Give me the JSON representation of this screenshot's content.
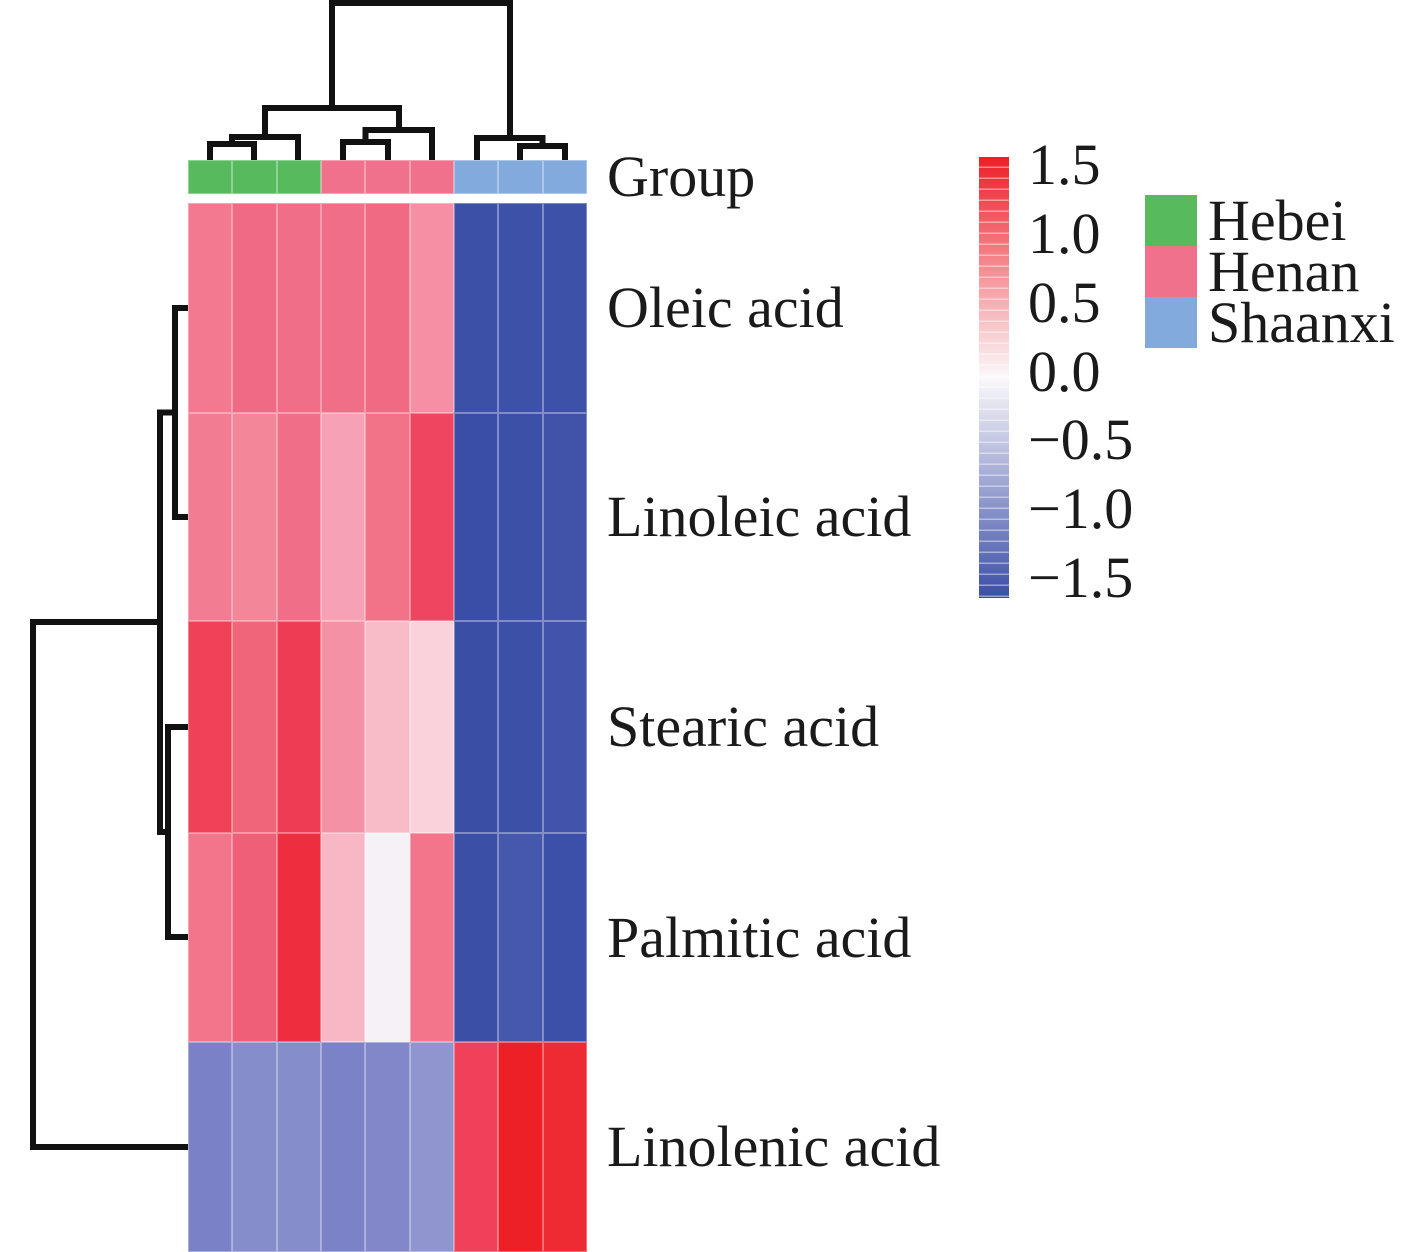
{
  "chart_data": {
    "type": "heatmap",
    "title": "",
    "rows": [
      "Oleic acid",
      "Linoleic acid",
      "Stearic acid",
      "Palmitic acid",
      "Linolenic acid"
    ],
    "columns_groups": [
      "Hebei",
      "Hebei",
      "Hebei",
      "Henan",
      "Henan",
      "Henan",
      "Shaanxi",
      "Shaanxi",
      "Shaanxi"
    ],
    "values_zscore_estimated": [
      [
        0.75,
        0.82,
        0.8,
        0.8,
        0.82,
        0.58,
        -1.42,
        -1.38,
        -1.38
      ],
      [
        0.72,
        0.65,
        0.8,
        0.48,
        0.75,
        1.1,
        -1.42,
        -1.4,
        -1.35
      ],
      [
        1.15,
        0.85,
        1.2,
        0.58,
        0.35,
        0.25,
        -1.42,
        -1.38,
        -1.32
      ],
      [
        0.75,
        0.92,
        1.35,
        0.4,
        0.03,
        0.75,
        -1.4,
        -1.22,
        -1.38
      ],
      [
        -0.85,
        -0.72,
        -0.72,
        -0.82,
        -0.78,
        -0.62,
        1.12,
        1.5,
        1.45
      ]
    ],
    "cell_colors": [
      [
        "#F27990",
        "#F16A85",
        "#F16E88",
        "#F16E88",
        "#F16A83",
        "#F58FA3",
        "#3C50A8",
        "#3E51A9",
        "#3E51A9"
      ],
      [
        "#F27C92",
        "#F38799",
        "#F16E88",
        "#F6A2B4",
        "#F27288",
        "#EF4560",
        "#3A4EA7",
        "#3C50A8",
        "#4152A9"
      ],
      [
        "#EF4158",
        "#F16579",
        "#EF3C55",
        "#F591A4",
        "#F8BCC9",
        "#FAD2DB",
        "#3A4EA6",
        "#3D50A8",
        "#4153AA"
      ],
      [
        "#F2758B",
        "#F05F78",
        "#EE2E3F",
        "#F8B7C5",
        "#F5F1F7",
        "#F2758B",
        "#3C4FA7",
        "#4657AE",
        "#3D50A9"
      ],
      [
        "#7A81C6",
        "#868DCB",
        "#868DCB",
        "#7B82C7",
        "#8187C9",
        "#9094CF",
        "#EF4159",
        "#ED2025",
        "#EE2A33"
      ]
    ],
    "colorscale": {
      "domain": [
        -1.5,
        0,
        1.5
      ],
      "colors": [
        "#3A4DA6",
        "#FBF9FB",
        "#ED1F28"
      ],
      "ticks": [
        "1.5",
        "1.0",
        "0.5",
        "0.0",
        "−0.5",
        "−1.0",
        "−1.5"
      ]
    },
    "annotation_row": {
      "label": "Group",
      "groups": [
        {
          "name": "Hebei",
          "color": "#57BA5D",
          "columns": [
            1,
            2,
            3
          ]
        },
        {
          "name": "Henan",
          "color": "#F0718B",
          "columns": [
            4,
            5,
            6
          ]
        },
        {
          "name": "Shaanxi",
          "color": "#82AADC",
          "columns": [
            7,
            8,
            9
          ]
        }
      ]
    },
    "row_dendrogram": "(((Oleic acid,Linoleic acid),(Stearic acid,Palmitic acid)),Linolenic acid)",
    "col_dendrogram": "((((1,2),3),((4,5),6)),(7,(8,9)))",
    "legend_position": "right",
    "grid": false
  }
}
